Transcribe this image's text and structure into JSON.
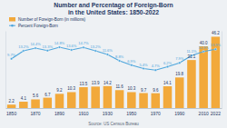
{
  "chart_data": {
    "type": "bar",
    "title": "Number and Percentage of Foreign-Born\nin the United States: 1850-2022",
    "annotations": [
      "Source: US Census Bureau"
    ],
    "categories": [
      "1850",
      null,
      "1870",
      null,
      "1890",
      null,
      "1910",
      null,
      "1930",
      null,
      "1950",
      null,
      "1970",
      null,
      "1990",
      null,
      "2010",
      "2022"
    ],
    "series": [
      {
        "name": "Number of Foreign-Born (in millions)",
        "type": "bar",
        "color": "#f2a93b",
        "values": [
          2.2,
          4.1,
          5.6,
          6.7,
          9.2,
          10.3,
          13.5,
          13.9,
          14.2,
          11.6,
          10.3,
          9.7,
          9.6,
          14.1,
          19.8,
          31.1,
          40.0,
          46.2
        ],
        "value_labels": [
          "2.2",
          "4.1",
          "5.6",
          "6.7",
          "9.2",
          "10.3",
          "13.5",
          "13.9",
          "14.2",
          "11.6",
          "10.3",
          "9.7",
          "9.6",
          "14.1",
          "19.8",
          "31.1",
          "40.0",
          "46.2"
        ]
      },
      {
        "name": "Percent Foreign-Born",
        "type": "line",
        "axis": "y2",
        "color": "#4ea6dc",
        "marker": "circle",
        "values": [
          9.7,
          13.2,
          14.4,
          13.3,
          14.8,
          13.6,
          14.7,
          13.2,
          11.6,
          8.8,
          6.9,
          5.4,
          4.7,
          6.2,
          7.9,
          11.1,
          12.9,
          13.9
        ],
        "value_labels": [
          "9.7%",
          "13.2%",
          "14.4%",
          "13.3%",
          "14.8%",
          "13.6%",
          "14.7%",
          "13.2%",
          "11.6%",
          "8.8%",
          "6.9%",
          "5.4%",
          "4.7%",
          "6.2%",
          "7.9%",
          "11.1%",
          "12.9%",
          "13.9%"
        ]
      }
    ],
    "ylim": [
      0,
      50
    ],
    "y2lim": [
      -12,
      22
    ],
    "tick_labels": "x",
    "data_labels": true,
    "legend": "upper left"
  }
}
